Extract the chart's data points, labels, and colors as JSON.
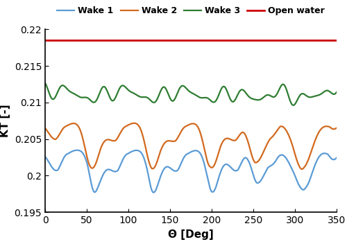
{
  "xlabel": "Θ [Deg]",
  "ylabel": "KT [-]",
  "ylim": [
    0.195,
    0.22
  ],
  "xlim": [
    0,
    350
  ],
  "yticks": [
    0.195,
    0.2,
    0.205,
    0.21,
    0.215,
    0.22
  ],
  "xticks": [
    0,
    50,
    100,
    150,
    200,
    250,
    300,
    350
  ],
  "open_water_value": 0.2185,
  "colors": {
    "wake1": "#5B9BD5",
    "wake2": "#D2691E",
    "wake3": "#2E7D32",
    "open_water": "#CC0000"
  },
  "legend_labels": [
    "Wake 1",
    "Wake 2",
    "Wake 3",
    "Open water"
  ],
  "linewidth": 1.6
}
